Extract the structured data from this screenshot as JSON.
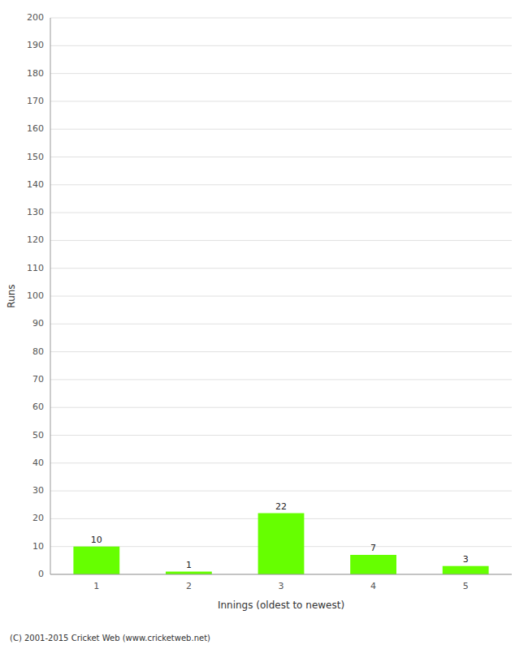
{
  "chart_data": {
    "type": "bar",
    "categories": [
      1,
      2,
      3,
      4,
      5
    ],
    "values": [
      10,
      1,
      22,
      7,
      3
    ],
    "color": "#66ff00",
    "x_label": "Innings (oldest to newest)",
    "y_label": "Runs",
    "ylim": [
      0,
      200
    ],
    "yticks": [
      0,
      10,
      20,
      30,
      40,
      50,
      60,
      70,
      80,
      90,
      100,
      110,
      120,
      130,
      140,
      150,
      160,
      170,
      180,
      190,
      200
    ],
    "grid": true,
    "data_labels": true,
    "annotations": [
      "(C) 2001-2015 Cricket Web (www.cricketweb.net)"
    ]
  }
}
